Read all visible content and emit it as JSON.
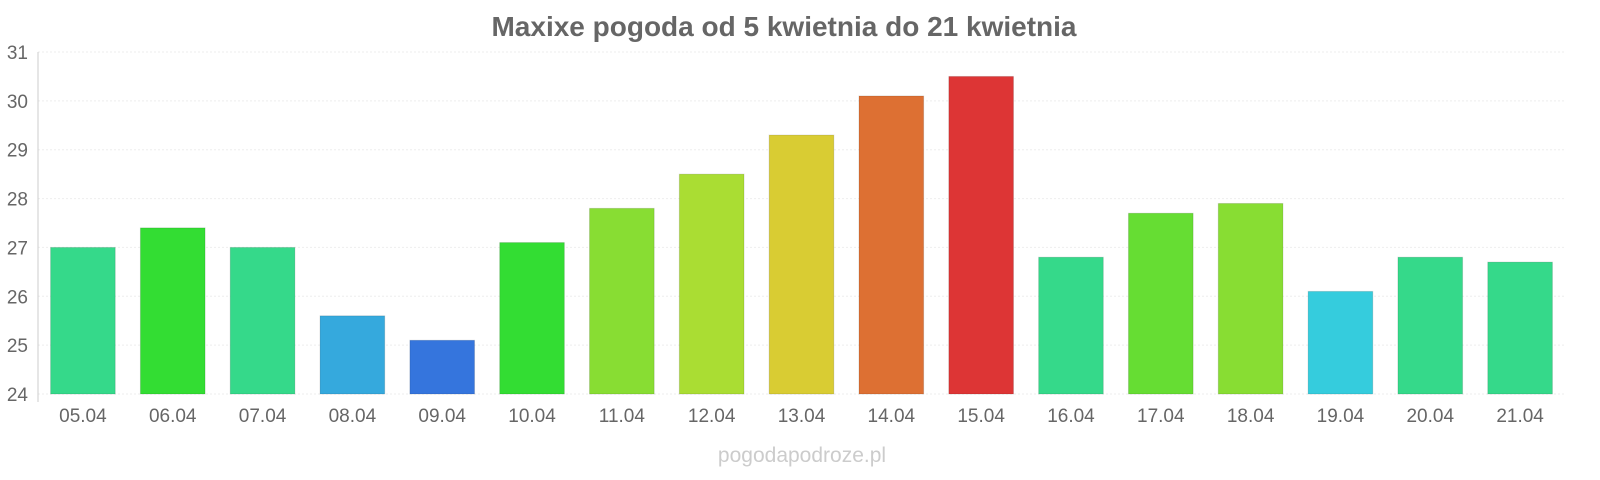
{
  "chart_data": {
    "type": "bar",
    "title": "Maxixe pogoda od 5 kwietnia do 21 kwietnia",
    "xlabel": "",
    "ylabel": "",
    "ylim": [
      24,
      31
    ],
    "yticks": [
      "24",
      "25",
      "26",
      "27",
      "28",
      "29",
      "30",
      "31"
    ],
    "categories": [
      "05.04",
      "06.04",
      "07.04",
      "08.04",
      "09.04",
      "10.04",
      "11.04",
      "12.04",
      "13.04",
      "14.04",
      "15.04",
      "16.04",
      "17.04",
      "18.04",
      "19.04",
      "20.04",
      "21.04"
    ],
    "values": [
      27.0,
      27.4,
      27.0,
      25.6,
      25.1,
      27.1,
      27.8,
      28.5,
      29.3,
      30.1,
      30.5,
      26.8,
      27.7,
      27.9,
      26.1,
      26.8,
      26.7
    ],
    "colors": [
      "#35d98a",
      "#33dd33",
      "#35d98a",
      "#35a9dd",
      "#3575dd",
      "#33dd33",
      "#88dd33",
      "#aadd33",
      "#d9cc33",
      "#dd7033",
      "#dd3535",
      "#35d98a",
      "#66dd33",
      "#88dd33",
      "#35ccdd",
      "#35d98a",
      "#35d98a"
    ],
    "grid": true,
    "legend": "none"
  },
  "watermark": "pogodapodroze.pl"
}
